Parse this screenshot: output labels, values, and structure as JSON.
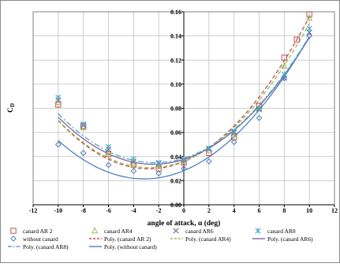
{
  "chart_data": {
    "type": "scatter",
    "title": "",
    "xlabel": "angle of attack, α (deg)",
    "ylabel": "C",
    "ylabel_subscript": "D",
    "xlim": [
      -12,
      12
    ],
    "ylim": [
      0.0,
      0.16
    ],
    "x_ticks": [
      "-12",
      "-10",
      "-8",
      "-6",
      "-4",
      "-2",
      "0",
      "2",
      "4",
      "6",
      "8",
      "10",
      "12"
    ],
    "y_ticks": [
      "0.00",
      "0.02",
      "0.04",
      "0.06",
      "0.08",
      "0.10",
      "0.12",
      "0.14",
      "0.16"
    ],
    "grid": true,
    "legend_position": "bottom",
    "series": [
      {
        "name": "canard AR 2",
        "marker": "square",
        "color": "#c0504d",
        "x": [
          -10,
          -8,
          -6,
          -4,
          -2,
          0,
          2,
          4,
          6,
          8,
          9,
          10
        ],
        "y": [
          0.083,
          0.065,
          0.042,
          0.033,
          0.03,
          0.035,
          0.043,
          0.056,
          0.082,
          0.122,
          0.137,
          0.158
        ]
      },
      {
        "name": "canard AR4",
        "marker": "triangle",
        "color": "#9bbb59",
        "x": [
          -10,
          -8,
          -6,
          -4,
          -2,
          0,
          2,
          4,
          6,
          8,
          10
        ],
        "y": [
          0.085,
          0.064,
          0.043,
          0.033,
          0.032,
          0.036,
          0.045,
          0.058,
          0.08,
          0.115,
          0.155
        ]
      },
      {
        "name": "canard AR6",
        "marker": "x",
        "color": "#8064a2",
        "x": [
          -10,
          -8,
          -6,
          -4,
          -2,
          0,
          2,
          4,
          6,
          8,
          10
        ],
        "y": [
          0.087,
          0.066,
          0.046,
          0.036,
          0.034,
          0.037,
          0.046,
          0.06,
          0.079,
          0.105,
          0.143
        ]
      },
      {
        "name": "canard AR8",
        "marker": "star",
        "color": "#4bacc6",
        "x": [
          -10,
          -8,
          -6,
          -4,
          -2,
          0,
          2,
          4,
          6,
          8,
          10
        ],
        "y": [
          0.089,
          0.067,
          0.048,
          0.038,
          0.035,
          0.038,
          0.047,
          0.061,
          0.08,
          0.108,
          0.146
        ]
      },
      {
        "name": "without canard",
        "marker": "diamond",
        "color": "#4f81bd",
        "x": [
          -10,
          -8,
          -6,
          -4,
          -2,
          0,
          2,
          4,
          6,
          8,
          10
        ],
        "y": [
          0.05,
          0.043,
          0.033,
          0.028,
          0.026,
          0.03,
          0.036,
          0.052,
          0.072,
          0.105,
          0.14
        ]
      }
    ],
    "trendlines": [
      {
        "name": "Poly. (canard AR 2)",
        "style": "dash",
        "color": "#c0504d",
        "coef": [
          0.0358,
          0.0043,
          0.00077
        ]
      },
      {
        "name": "Poly. (canard AR4)",
        "style": "dash",
        "color": "#9bbb59",
        "coef": [
          0.0362,
          0.004,
          0.00074
        ]
      },
      {
        "name": "Poly. (canard AR6)",
        "style": "solid",
        "color": "#8064a2",
        "coef": [
          0.0376,
          0.0033,
          0.00068
        ]
      },
      {
        "name": "Poly. (canard AR8)",
        "style": "dashdot",
        "color": "#4bacc6",
        "coef": [
          0.0386,
          0.0032,
          0.00069
        ]
      },
      {
        "name": "Poly. (without canard)",
        "style": "solid",
        "color": "#4f81bd",
        "coef": [
          0.0283,
          0.0043,
          0.00068
        ]
      }
    ]
  }
}
